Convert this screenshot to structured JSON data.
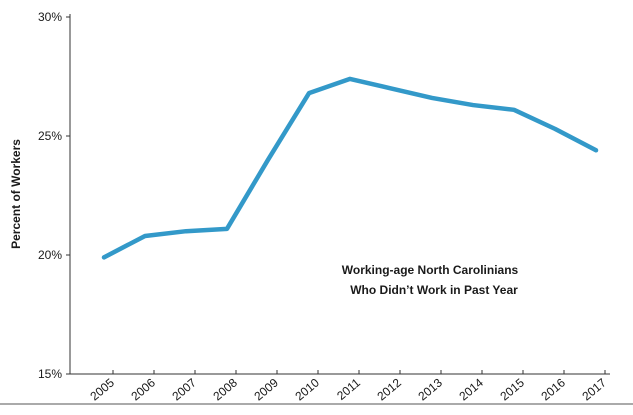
{
  "chart_data": {
    "type": "line",
    "title": "",
    "xlabel": "",
    "ylabel": "Percent of Workers",
    "ylim": [
      15,
      30
    ],
    "y_ticks": [
      "15%",
      "20%",
      "25%",
      "30%"
    ],
    "y_tick_values": [
      15,
      20,
      25,
      30
    ],
    "categories": [
      "2005",
      "2006",
      "2007",
      "2008",
      "2009",
      "2010",
      "2011",
      "2012",
      "2013",
      "2014",
      "2015",
      "2016",
      "2017"
    ],
    "series": [
      {
        "name": "",
        "color": "#3399c9",
        "values": [
          19.9,
          20.8,
          21.0,
          21.1,
          24.0,
          26.8,
          27.4,
          27.0,
          26.6,
          26.3,
          26.1,
          25.3,
          24.4
        ]
      }
    ],
    "annotation": {
      "line1": "Working-age North Carolinians",
      "line2": "Who Didn’t Work in Past Year"
    },
    "grid": false,
    "legend": "none"
  }
}
